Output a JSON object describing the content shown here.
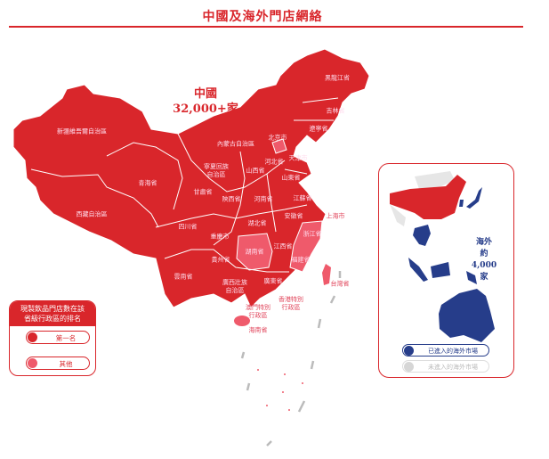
{
  "title": "中國及海外門店網絡",
  "china": {
    "label": "中國",
    "count": "32,000+家"
  },
  "overseas": {
    "label": "海外",
    "count": "約4,000家",
    "legend": [
      {
        "label": "已進入的海外市場",
        "color": "#263d8a"
      },
      {
        "label": "未進入的海外市場",
        "color": "#d6d6d6"
      }
    ]
  },
  "legend": {
    "title_line1": "現製飲品門店數在該",
    "title_line2": "省級行政區的排名",
    "items": [
      {
        "label": "第一名",
        "color": "#d9262b"
      },
      {
        "label": "其他",
        "color": "#ef5a6b"
      }
    ]
  },
  "provinces": [
    {
      "name": "新疆維吾爾自治區",
      "rank": "第一名"
    },
    {
      "name": "西藏自治區",
      "rank": "第一名"
    },
    {
      "name": "青海省",
      "rank": "第一名"
    },
    {
      "name": "甘肅省",
      "rank": "第一名"
    },
    {
      "name": "寧夏回族自治區",
      "rank": "第一名"
    },
    {
      "name": "內蒙古自治區",
      "rank": "第一名"
    },
    {
      "name": "黑龍江省",
      "rank": "第一名"
    },
    {
      "name": "吉林省",
      "rank": "第一名"
    },
    {
      "name": "遼寧省",
      "rank": "第一名"
    },
    {
      "name": "北京市",
      "rank": "其他"
    },
    {
      "name": "天津市",
      "rank": "第一名"
    },
    {
      "name": "河北省",
      "rank": "第一名"
    },
    {
      "name": "山西省",
      "rank": "第一名"
    },
    {
      "name": "山東省",
      "rank": "第一名"
    },
    {
      "name": "陝西省",
      "rank": "第一名"
    },
    {
      "name": "河南省",
      "rank": "第一名"
    },
    {
      "name": "江蘇省",
      "rank": "第一名"
    },
    {
      "name": "安徽省",
      "rank": "第一名"
    },
    {
      "name": "上海市",
      "rank": "第一名"
    },
    {
      "name": "湖北省",
      "rank": "第一名"
    },
    {
      "name": "四川省",
      "rank": "第一名"
    },
    {
      "name": "重慶市",
      "rank": "第一名"
    },
    {
      "name": "浙江省",
      "rank": "其他"
    },
    {
      "name": "湖南省",
      "rank": "其他"
    },
    {
      "name": "江西省",
      "rank": "第一名"
    },
    {
      "name": "福建省",
      "rank": "其他"
    },
    {
      "name": "貴州省",
      "rank": "第一名"
    },
    {
      "name": "雲南省",
      "rank": "第一名"
    },
    {
      "name": "廣西壯族自治區",
      "rank": "第一名"
    },
    {
      "name": "廣東省",
      "rank": "第一名"
    },
    {
      "name": "台灣省",
      "rank": "其他"
    },
    {
      "name": "香港特別行政區",
      "rank": "其他"
    },
    {
      "name": "澳門特別行政區",
      "rank": "其他"
    },
    {
      "name": "海南省",
      "rank": "其他"
    }
  ]
}
